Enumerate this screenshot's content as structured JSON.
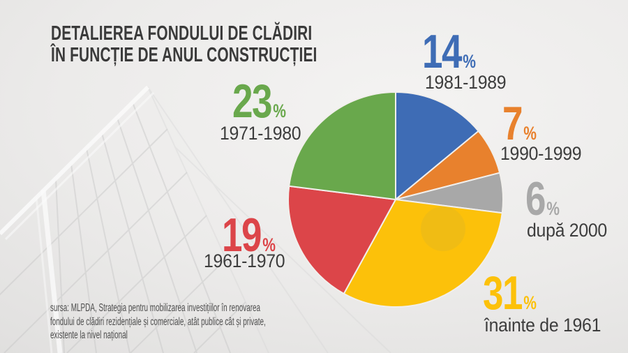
{
  "title": {
    "lines": [
      "DETALIEREA FONDULUI DE CLĂDIRI",
      "ÎN FUNCȚIE DE ANUL CONSTRUCȚIEI"
    ]
  },
  "source": {
    "lines": [
      "sursa: MLPDA, Strategia pentru mobilizarea investițiilor în renovarea",
      "fondului de clădiri rezidențiale și comerciale, atât publice cât și private,",
      "existente la nivel național"
    ]
  },
  "colors": {
    "title_text": "#3a3a3a",
    "label_text": "#3d3d3d",
    "source_text": "#4d4d4d",
    "slice_separator": "#f1efec",
    "background": "#ecebea"
  },
  "chart_data": {
    "type": "pie",
    "title": "Detalierea fondului de clădiri în funcție de anul construcției",
    "start_angle_deg": -90,
    "direction": "clockwise",
    "legend_position": "around",
    "slices": [
      {
        "label": "1981-1989",
        "value": 14,
        "pct": "14",
        "unit": "%",
        "color": "#3e6cb5"
      },
      {
        "label": "1990-1999",
        "value": 7,
        "pct": "7",
        "unit": "%",
        "color": "#e8812d"
      },
      {
        "label": "după 2000",
        "value": 6,
        "pct": "6",
        "unit": "%",
        "color": "#a8a8a8"
      },
      {
        "label": "înainte de 1961",
        "value": 31,
        "pct": "31",
        "unit": "%",
        "color": "#fcc10a"
      },
      {
        "label": "1961-1970",
        "value": 19,
        "pct": "19",
        "unit": "%",
        "color": "#dc4549"
      },
      {
        "label": "1971-1980",
        "value": 23,
        "pct": "23",
        "unit": "%",
        "color": "#69a84c"
      }
    ]
  }
}
